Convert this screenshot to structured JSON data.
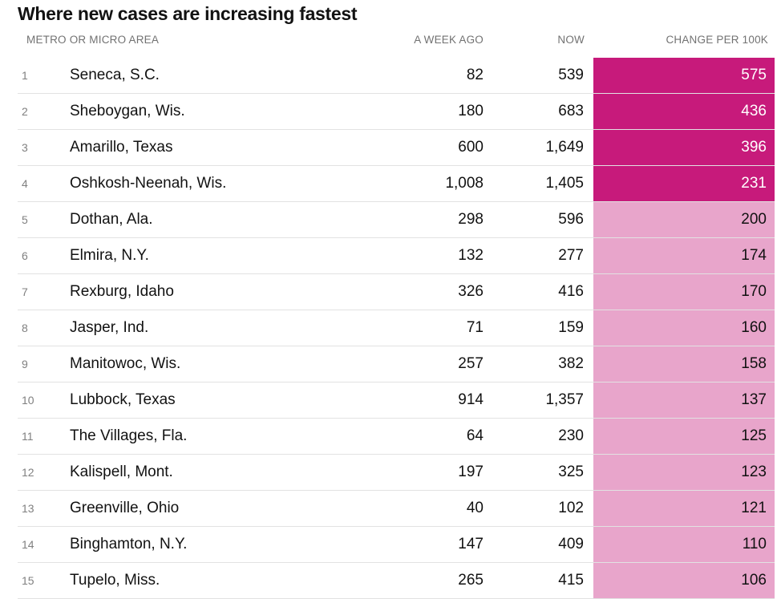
{
  "title": "Where new cases are increasing fastest",
  "headers": {
    "metro": "METRO OR MICRO AREA",
    "week_ago": "A WEEK AGO",
    "now": "NOW",
    "change": "CHANGE PER 100K"
  },
  "colors": {
    "high": "#c71a7b",
    "low": "#e8a5cb",
    "high_text": "#ffffff",
    "low_text": "#121212"
  },
  "chart_data": {
    "type": "table",
    "title": "Where new cases are increasing fastest",
    "columns": [
      "METRO OR MICRO AREA",
      "A WEEK AGO",
      "NOW",
      "CHANGE PER 100K"
    ],
    "rows": [
      {
        "rank": "1",
        "area": "Seneca, S.C.",
        "week_ago": "82",
        "now": "539",
        "change": "575",
        "change_value": 575
      },
      {
        "rank": "2",
        "area": "Sheboygan, Wis.",
        "week_ago": "180",
        "now": "683",
        "change": "436",
        "change_value": 436
      },
      {
        "rank": "3",
        "area": "Amarillo, Texas",
        "week_ago": "600",
        "now": "1,649",
        "change": "396",
        "change_value": 396
      },
      {
        "rank": "4",
        "area": "Oshkosh-Neenah, Wis.",
        "week_ago": "1,008",
        "now": "1,405",
        "change": "231",
        "change_value": 231
      },
      {
        "rank": "5",
        "area": "Dothan, Ala.",
        "week_ago": "298",
        "now": "596",
        "change": "200",
        "change_value": 200
      },
      {
        "rank": "6",
        "area": "Elmira, N.Y.",
        "week_ago": "132",
        "now": "277",
        "change": "174",
        "change_value": 174
      },
      {
        "rank": "7",
        "area": "Rexburg, Idaho",
        "week_ago": "326",
        "now": "416",
        "change": "170",
        "change_value": 170
      },
      {
        "rank": "8",
        "area": "Jasper, Ind.",
        "week_ago": "71",
        "now": "159",
        "change": "160",
        "change_value": 160
      },
      {
        "rank": "9",
        "area": "Manitowoc, Wis.",
        "week_ago": "257",
        "now": "382",
        "change": "158",
        "change_value": 158
      },
      {
        "rank": "10",
        "area": "Lubbock, Texas",
        "week_ago": "914",
        "now": "1,357",
        "change": "137",
        "change_value": 137
      },
      {
        "rank": "11",
        "area": "The Villages, Fla.",
        "week_ago": "64",
        "now": "230",
        "change": "125",
        "change_value": 125
      },
      {
        "rank": "12",
        "area": "Kalispell, Mont.",
        "week_ago": "197",
        "now": "325",
        "change": "123",
        "change_value": 123
      },
      {
        "rank": "13",
        "area": "Greenville, Ohio",
        "week_ago": "40",
        "now": "102",
        "change": "121",
        "change_value": 121
      },
      {
        "rank": "14",
        "area": "Binghamton, N.Y.",
        "week_ago": "147",
        "now": "409",
        "change": "110",
        "change_value": 110
      },
      {
        "rank": "15",
        "area": "Tupelo, Miss.",
        "week_ago": "265",
        "now": "415",
        "change": "106",
        "change_value": 106
      }
    ]
  }
}
